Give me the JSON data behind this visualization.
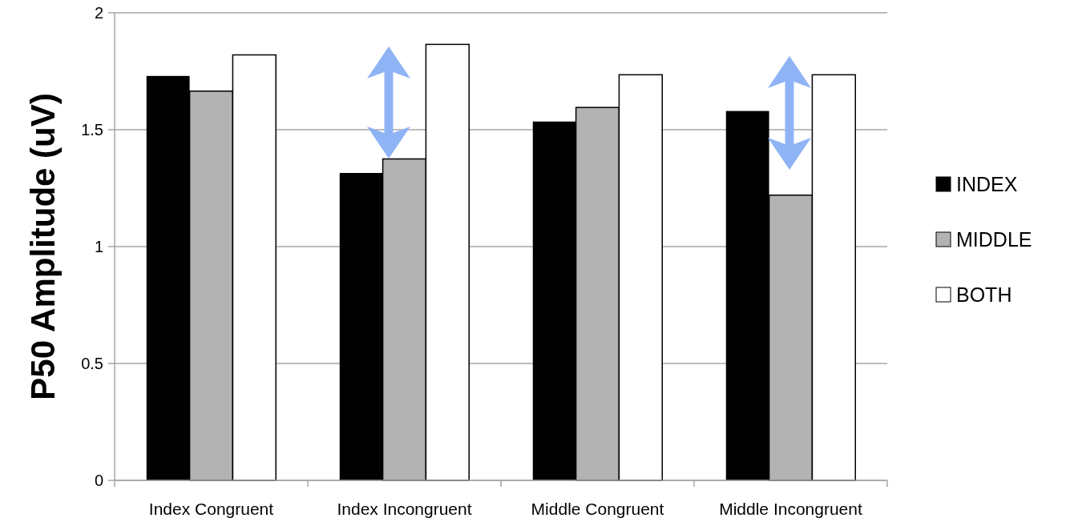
{
  "chart_data": {
    "type": "bar",
    "ylabel": "P50 Amplitude (uV)",
    "categories": [
      "Index Congruent",
      "Index Incongruent",
      "Middle Congruent",
      "Middle Incongruent"
    ],
    "series": [
      {
        "name": "INDEX",
        "color": "#000000",
        "values": [
          1.73,
          1.315,
          1.535,
          1.58
        ]
      },
      {
        "name": "MIDDLE",
        "color": "#b3b3b3",
        "values": [
          1.665,
          1.375,
          1.595,
          1.22
        ]
      },
      {
        "name": "BOTH",
        "color": "#ffffff",
        "values": [
          1.82,
          1.865,
          1.735,
          1.735
        ]
      }
    ],
    "ylim": [
      0,
      2
    ],
    "yticks": [
      0,
      0.5,
      1,
      1.5,
      2
    ],
    "grid": "y",
    "legend": "right"
  }
}
